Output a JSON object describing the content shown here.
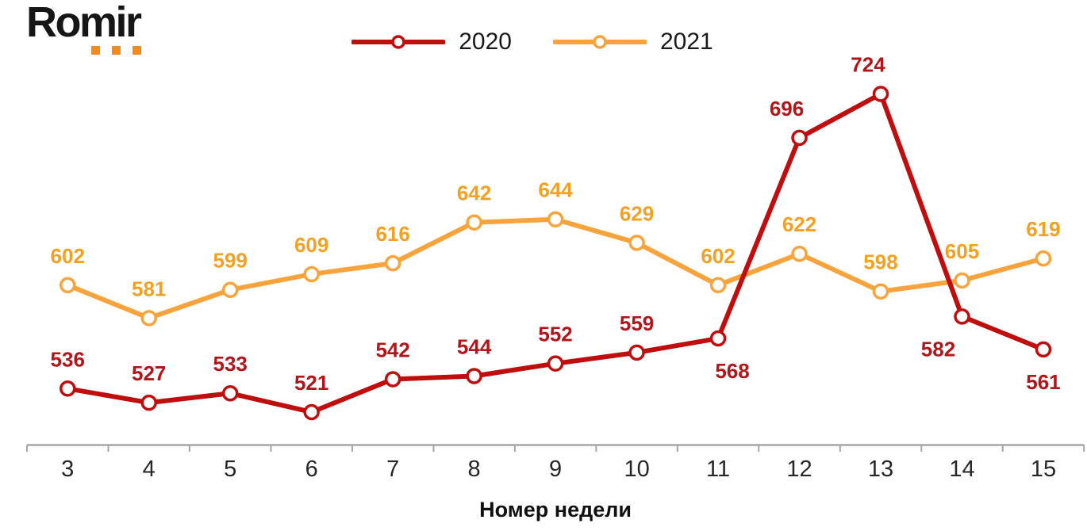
{
  "logo": {
    "text": "Romir",
    "text_color": "#161616",
    "dots_color": "#f28a1e"
  },
  "legend": {
    "position": "top-center",
    "items": [
      "2020",
      "2021"
    ]
  },
  "chart_data": {
    "type": "line",
    "title": "",
    "xlabel": "Номер недели",
    "ylabel": "",
    "x_categories": [
      "3",
      "4",
      "5",
      "6",
      "7",
      "8",
      "9",
      "10",
      "11",
      "12",
      "13",
      "14",
      "15"
    ],
    "ylim": [
      500,
      745
    ],
    "grid": false,
    "legend_position": "top-center",
    "axis_color": "#a6a6a6",
    "tick_label_color": "#262626",
    "axis_title_color": "#111111",
    "marker_style": "open-circle-white-fill",
    "series": [
      {
        "name": "2020",
        "color": "#c00d0d",
        "label_color": "#b2151a",
        "values": [
          536,
          527,
          533,
          521,
          542,
          544,
          552,
          559,
          568,
          696,
          724,
          582,
          561
        ],
        "label_below": [
          8,
          11,
          12
        ],
        "label_dx": {
          "8": 18,
          "9": -16,
          "10": -16,
          "11": -30
        }
      },
      {
        "name": "2021",
        "color": "#f8a33c",
        "label_color": "#f4a021",
        "values": [
          602,
          581,
          599,
          609,
          616,
          642,
          644,
          629,
          602,
          622,
          598,
          605,
          619
        ],
        "label_below": [],
        "label_dx": {}
      }
    ]
  }
}
